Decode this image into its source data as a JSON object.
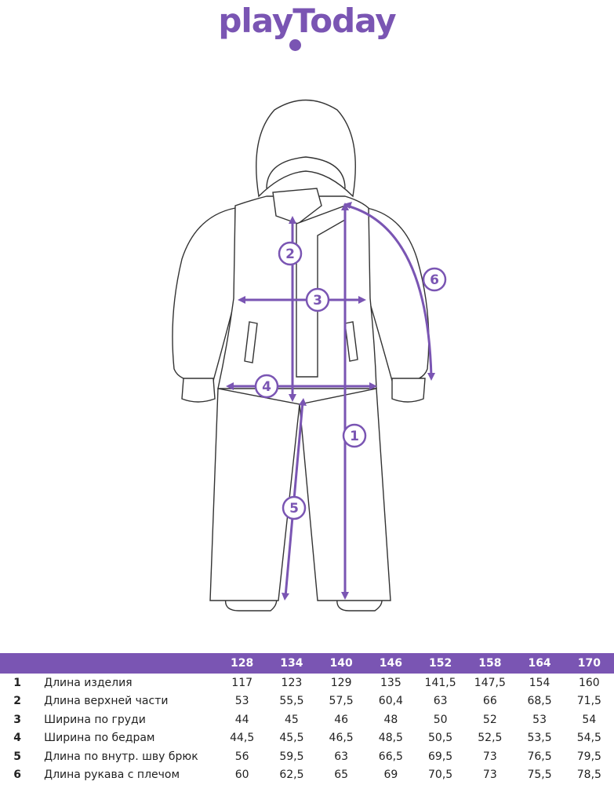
{
  "brand": {
    "logo_text": "playToday",
    "accent": "#7a55b3"
  },
  "markers": [
    "1",
    "2",
    "3",
    "4",
    "5",
    "6"
  ],
  "table": {
    "sizes": [
      "128",
      "134",
      "140",
      "146",
      "152",
      "158",
      "164",
      "170"
    ],
    "rows": [
      {
        "num": "1",
        "label": "Длина изделия",
        "values": [
          "117",
          "123",
          "129",
          "135",
          "141,5",
          "147,5",
          "154",
          "160"
        ]
      },
      {
        "num": "2",
        "label": "Длина верхней части",
        "values": [
          "53",
          "55,5",
          "57,5",
          "60,4",
          "63",
          "66",
          "68,5",
          "71,5"
        ]
      },
      {
        "num": "3",
        "label": "Ширина по груди",
        "values": [
          "44",
          "45",
          "46",
          "48",
          "50",
          "52",
          "53",
          "54"
        ]
      },
      {
        "num": "4",
        "label": "Ширина по бедрам",
        "values": [
          "44,5",
          "45,5",
          "46,5",
          "48,5",
          "50,5",
          "52,5",
          "53,5",
          "54,5"
        ]
      },
      {
        "num": "5",
        "label": "Длина по внутр. шву брюк",
        "values": [
          "56",
          "59,5",
          "63",
          "66,5",
          "69,5",
          "73",
          "76,5",
          "79,5"
        ]
      },
      {
        "num": "6",
        "label": "Длина рукава с плечом",
        "values": [
          "60",
          "62,5",
          "65",
          "69",
          "70,5",
          "73",
          "75,5",
          "78,5"
        ]
      }
    ]
  }
}
